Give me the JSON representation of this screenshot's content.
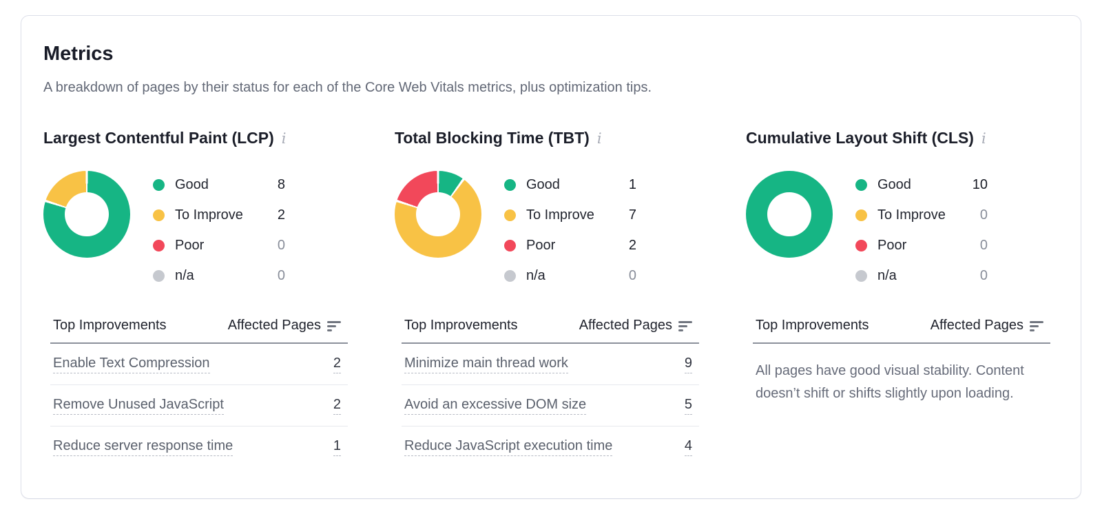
{
  "card": {
    "title": "Metrics",
    "subtitle": "A breakdown of pages by their status for each of the Core Web Vitals metrics, plus optimization tips."
  },
  "info_icon_glyph": "i",
  "table_header": {
    "improvements": "Top Improvements",
    "affected_pages": "Affected Pages"
  },
  "colors": {
    "good": "#16b584",
    "to_improve": "#f8c245",
    "poor": "#f2485a",
    "na": "#c6c9cf"
  },
  "chart_data": [
    {
      "type": "pie",
      "subtype": "donut",
      "title": "Largest Contentful Paint (LCP)",
      "total_pages": 10,
      "slices": [
        {
          "label": "Good",
          "value": 8,
          "color": "#16b584"
        },
        {
          "label": "To Improve",
          "value": 2,
          "color": "#f8c245"
        },
        {
          "label": "Poor",
          "value": 0,
          "color": "#f2485a"
        },
        {
          "label": "n/a",
          "value": 0,
          "color": "#c6c9cf"
        }
      ]
    },
    {
      "type": "pie",
      "subtype": "donut",
      "title": "Total Blocking Time (TBT)",
      "total_pages": 10,
      "slices": [
        {
          "label": "Good",
          "value": 1,
          "color": "#16b584"
        },
        {
          "label": "To Improve",
          "value": 7,
          "color": "#f8c245"
        },
        {
          "label": "Poor",
          "value": 2,
          "color": "#f2485a"
        },
        {
          "label": "n/a",
          "value": 0,
          "color": "#c6c9cf"
        }
      ]
    },
    {
      "type": "pie",
      "subtype": "donut",
      "title": "Cumulative Layout Shift (CLS)",
      "total_pages": 10,
      "slices": [
        {
          "label": "Good",
          "value": 10,
          "color": "#16b584"
        },
        {
          "label": "To Improve",
          "value": 0,
          "color": "#f8c245"
        },
        {
          "label": "Poor",
          "value": 0,
          "color": "#f2485a"
        },
        {
          "label": "n/a",
          "value": 0,
          "color": "#c6c9cf"
        }
      ]
    }
  ],
  "improvements": [
    [
      {
        "label": "Enable Text Compression",
        "pages": 2
      },
      {
        "label": "Remove Unused JavaScript",
        "pages": 2
      },
      {
        "label": "Reduce server response time",
        "pages": 1
      }
    ],
    [
      {
        "label": "Minimize main thread work",
        "pages": 9
      },
      {
        "label": "Avoid an excessive DOM size",
        "pages": 5
      },
      {
        "label": "Reduce JavaScript execution time",
        "pages": 4
      }
    ],
    []
  ],
  "cls_empty_message": "All pages have good visual stability. Content doesn’t shift or shifts slightly upon loading."
}
